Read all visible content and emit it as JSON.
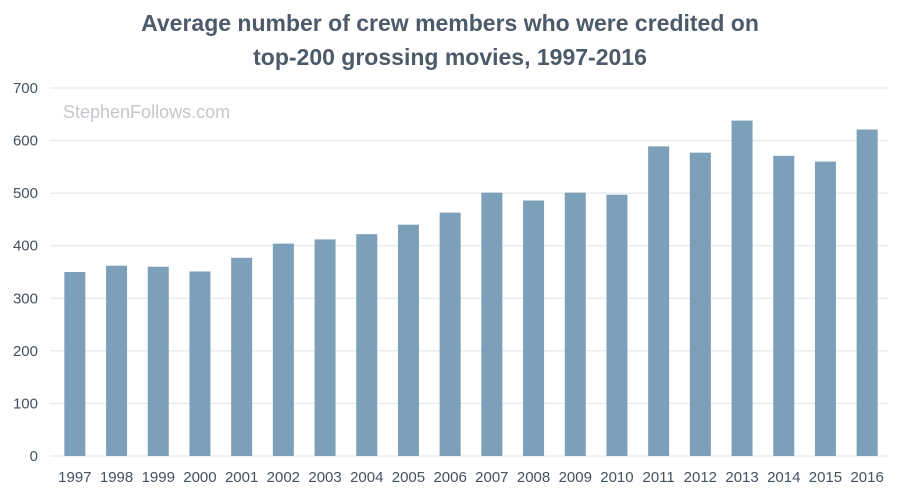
{
  "chart_data": {
    "type": "bar",
    "title": [
      "Average number of crew members who were credited on",
      "top-200 grossing movies, 1997-2016"
    ],
    "watermark": "StephenFollows.com",
    "categories": [
      "1997",
      "1998",
      "1999",
      "2000",
      "2001",
      "2002",
      "2003",
      "2004",
      "2005",
      "2006",
      "2007",
      "2008",
      "2009",
      "2010",
      "2011",
      "2012",
      "2013",
      "2014",
      "2015",
      "2016"
    ],
    "values": [
      350,
      362,
      360,
      351,
      377,
      404,
      412,
      422,
      440,
      463,
      501,
      486,
      501,
      497,
      589,
      577,
      638,
      571,
      560,
      621
    ],
    "ylim": [
      0,
      700
    ],
    "yticks": [
      0,
      100,
      200,
      300,
      400,
      500,
      600,
      700
    ],
    "grid": true,
    "colors": {
      "bar": "#7c9fba",
      "grid": "#dfe3e8",
      "text": "#44515f",
      "title": "#4c5a69"
    }
  }
}
